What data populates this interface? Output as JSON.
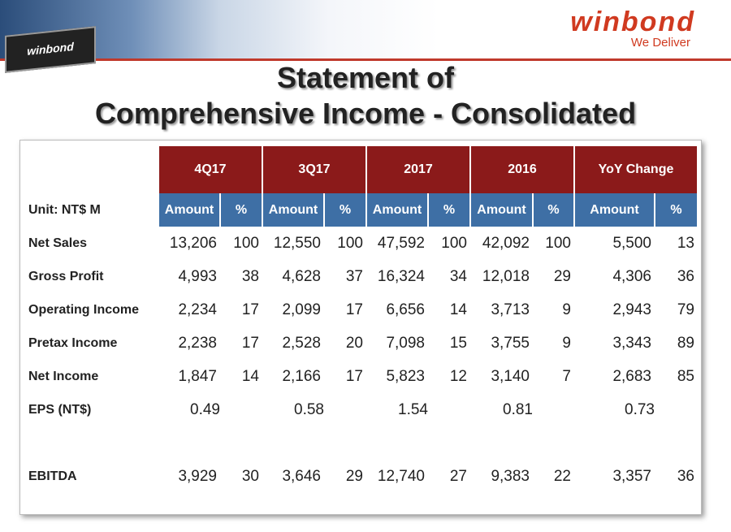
{
  "header": {
    "chip_label": "winbond",
    "brand": "winbond",
    "tagline": "We Deliver"
  },
  "title": {
    "line1": "Statement of",
    "line2": "Comprehensive Income - Consolidated"
  },
  "table": {
    "groups": [
      "4Q17",
      "3Q17",
      "2017",
      "2016",
      "YoY Change"
    ],
    "unit": "Unit:  NT$ M",
    "subheaders": [
      "Amount",
      "%",
      "Amount",
      "%",
      "Amount",
      "%",
      "Amount",
      "%",
      "Amount",
      "%"
    ],
    "rows": [
      {
        "label": "Net Sales",
        "cells": [
          "13,206",
          "100",
          "12,550",
          "100",
          "47,592",
          "100",
          "42,092",
          "100",
          "5,500",
          "13"
        ]
      },
      {
        "label": "Gross Profit",
        "cells": [
          "4,993",
          "38",
          "4,628",
          "37",
          "16,324",
          "34",
          "12,018",
          "29",
          "4,306",
          "36"
        ]
      },
      {
        "label": "Operating Income",
        "cells": [
          "2,234",
          "17",
          "2,099",
          "17",
          "6,656",
          "14",
          "3,713",
          "9",
          "2,943",
          "79"
        ]
      },
      {
        "label": "Pretax Income",
        "cells": [
          "2,238",
          "17",
          "2,528",
          "20",
          "7,098",
          "15",
          "3,755",
          "9",
          "3,343",
          "89"
        ]
      },
      {
        "label": "Net Income",
        "cells": [
          "1,847",
          "14",
          "2,166",
          "17",
          "5,823",
          "12",
          "3,140",
          "7",
          "2,683",
          "85"
        ]
      },
      {
        "label": "EPS (NT$)",
        "amounts": [
          "0.49",
          "0.58",
          "1.54",
          "0.81",
          "0.73"
        ]
      },
      {
        "label": "EBITDA",
        "cells": [
          "3,929",
          "30",
          "3,646",
          "29",
          "12,740",
          "27",
          "9,383",
          "22",
          "3,357",
          "36"
        ]
      }
    ]
  }
}
